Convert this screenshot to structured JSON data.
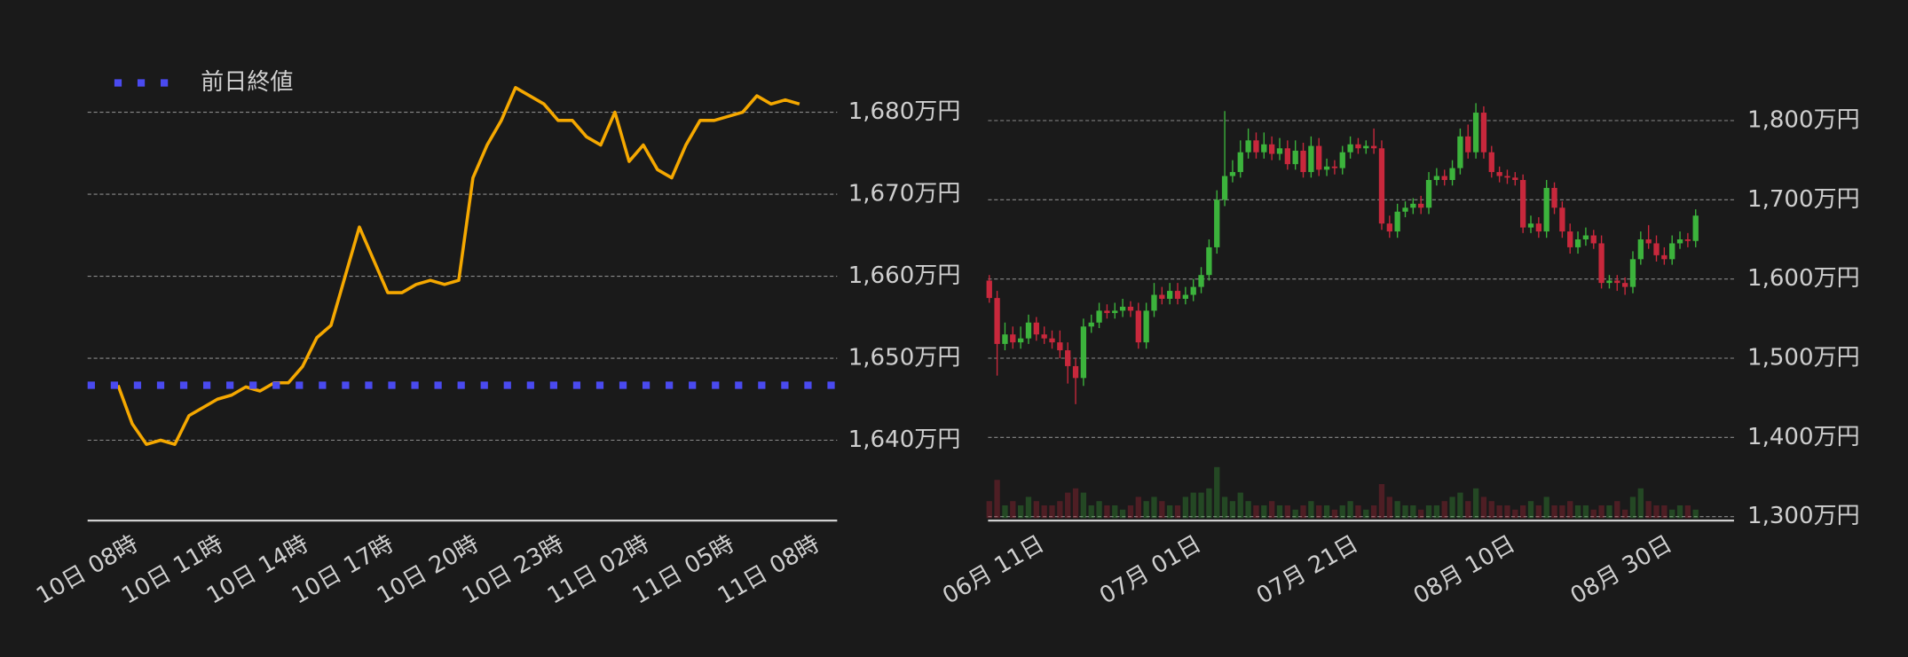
{
  "chart_data": [
    {
      "type": "line",
      "x": [
        "10日 08時",
        null,
        null,
        null,
        null,
        null,
        "10日 11時",
        null,
        null,
        null,
        null,
        null,
        "10日 14時",
        null,
        null,
        null,
        null,
        null,
        "10日 17時",
        null,
        null,
        null,
        null,
        null,
        "10日 20時",
        null,
        null,
        null,
        null,
        null,
        "10日 23時",
        null,
        null,
        null,
        null,
        null,
        "11日 02時",
        null,
        null,
        null,
        null,
        null,
        "11日 05時",
        null,
        null,
        null,
        null,
        null,
        "11日 08時"
      ],
      "series": [
        {
          "color": "#f5a800",
          "values": [
            1646.7,
            1642,
            1639.5,
            1640,
            1639.5,
            1643,
            1644,
            1645,
            1645.5,
            1646.5,
            1646,
            1647,
            1647,
            1649,
            1652.5,
            1654,
            1660,
            1666,
            1662,
            1658,
            1658,
            1659,
            1659.5,
            1659,
            1659.5,
            1672,
            1676,
            1679,
            1683,
            1682,
            1681,
            1679,
            1679,
            1677,
            1676,
            1680,
            1674,
            1676,
            1673,
            1672,
            1676,
            1679,
            1679,
            1679.5,
            1680,
            1682,
            1681,
            1681.5,
            1681
          ]
        }
      ],
      "reference_line": {
        "name": "前日終値",
        "value": 1646.7,
        "color": "#4a4af0"
      },
      "legend": "top-left",
      "ylim": [
        1630.2,
        1685.5
      ],
      "yticks": [
        {
          "value": 1640,
          "label": "1,640万円"
        },
        {
          "value": 1650,
          "label": "1,650万円"
        },
        {
          "value": 1660,
          "label": "1,660万円"
        },
        {
          "value": 1670,
          "label": "1,670万円"
        },
        {
          "value": 1680,
          "label": "1,680万円"
        }
      ],
      "grid": true
    },
    {
      "type": "candlestick",
      "x": [
        null,
        null,
        null,
        null,
        null,
        null,
        "06月 11日",
        null,
        null,
        null,
        null,
        null,
        null,
        null,
        null,
        null,
        null,
        null,
        null,
        null,
        null,
        null,
        null,
        null,
        null,
        null,
        "07月 01日",
        null,
        null,
        null,
        null,
        null,
        null,
        null,
        null,
        null,
        null,
        null,
        null,
        null,
        null,
        null,
        null,
        null,
        null,
        null,
        "07月 21日",
        null,
        null,
        null,
        null,
        null,
        null,
        null,
        null,
        null,
        null,
        null,
        null,
        null,
        null,
        null,
        null,
        null,
        null,
        null,
        "08月 10日",
        null,
        null,
        null,
        null,
        null,
        null,
        null,
        null,
        null,
        null,
        null,
        null,
        null,
        null,
        null,
        null,
        null,
        null,
        null,
        "08月 30日",
        null,
        null,
        null,
        null
      ],
      "open": [
        1598,
        1576,
        1518,
        1530,
        1520,
        1525,
        1545,
        1530,
        1525,
        1520,
        1510,
        1490,
        1475,
        1540,
        1545,
        1560,
        1557,
        1560,
        1565,
        1560,
        1520,
        1560,
        1580,
        1575,
        1585,
        1575,
        1580,
        1590,
        1605,
        1640,
        1700,
        1730,
        1735,
        1760,
        1775,
        1760,
        1770,
        1758,
        1765,
        1745,
        1762,
        1735,
        1768,
        1738,
        1742,
        1740,
        1760,
        1770,
        1765,
        1768,
        1765,
        1670,
        1660,
        1685,
        1690,
        1695,
        1690,
        1725,
        1730,
        1725,
        1740,
        1780,
        1760,
        1810,
        1760,
        1735,
        1730,
        1728,
        1725,
        1665,
        1670,
        1660,
        1715,
        1690,
        1660,
        1640,
        1650,
        1655,
        1645,
        1595,
        1598,
        1595,
        1590,
        1625,
        1650,
        1645,
        1630,
        1625,
        1645,
        1650,
        1648
      ],
      "high": [
        1605,
        1585,
        1545,
        1540,
        1540,
        1555,
        1552,
        1540,
        1535,
        1535,
        1520,
        1500,
        1550,
        1555,
        1570,
        1568,
        1570,
        1575,
        1572,
        1570,
        1570,
        1595,
        1590,
        1595,
        1595,
        1590,
        1600,
        1615,
        1650,
        1712,
        1812,
        1750,
        1775,
        1790,
        1785,
        1785,
        1780,
        1778,
        1775,
        1775,
        1772,
        1780,
        1778,
        1752,
        1750,
        1768,
        1780,
        1778,
        1775,
        1790,
        1775,
        1680,
        1695,
        1698,
        1702,
        1705,
        1735,
        1740,
        1738,
        1750,
        1790,
        1795,
        1822,
        1818,
        1768,
        1742,
        1738,
        1735,
        1732,
        1680,
        1678,
        1725,
        1722,
        1698,
        1670,
        1660,
        1665,
        1662,
        1655,
        1605,
        1605,
        1602,
        1635,
        1660,
        1668,
        1655,
        1640,
        1655,
        1660,
        1658,
        1688
      ],
      "low": [
        1570,
        1478,
        1510,
        1512,
        1512,
        1518,
        1522,
        1518,
        1512,
        1500,
        1468,
        1442,
        1465,
        1532,
        1538,
        1550,
        1550,
        1552,
        1552,
        1512,
        1512,
        1552,
        1568,
        1568,
        1568,
        1568,
        1572,
        1582,
        1598,
        1632,
        1692,
        1722,
        1728,
        1752,
        1752,
        1752,
        1750,
        1750,
        1738,
        1738,
        1728,
        1728,
        1730,
        1730,
        1732,
        1732,
        1752,
        1758,
        1758,
        1758,
        1662,
        1652,
        1652,
        1678,
        1682,
        1682,
        1682,
        1718,
        1718,
        1718,
        1732,
        1752,
        1752,
        1752,
        1728,
        1722,
        1720,
        1718,
        1658,
        1658,
        1652,
        1652,
        1682,
        1652,
        1632,
        1632,
        1642,
        1638,
        1588,
        1588,
        1585,
        1580,
        1582,
        1618,
        1638,
        1622,
        1618,
        1618,
        1638,
        1640,
        1640
      ],
      "close": [
        1576,
        1518,
        1530,
        1520,
        1525,
        1545,
        1530,
        1525,
        1520,
        1510,
        1490,
        1475,
        1540,
        1545,
        1560,
        1557,
        1560,
        1565,
        1560,
        1520,
        1560,
        1580,
        1575,
        1585,
        1575,
        1580,
        1590,
        1605,
        1640,
        1700,
        1730,
        1735,
        1760,
        1775,
        1760,
        1770,
        1758,
        1765,
        1745,
        1762,
        1735,
        1768,
        1738,
        1742,
        1740,
        1760,
        1770,
        1765,
        1768,
        1765,
        1670,
        1660,
        1685,
        1690,
        1695,
        1690,
        1725,
        1730,
        1725,
        1740,
        1780,
        1760,
        1810,
        1760,
        1735,
        1730,
        1728,
        1725,
        1665,
        1670,
        1660,
        1715,
        1690,
        1660,
        1640,
        1650,
        1655,
        1645,
        1595,
        1598,
        1595,
        1590,
        1625,
        1650,
        1645,
        1630,
        1625,
        1645,
        1650,
        1648,
        1680
      ],
      "volume": [
        4,
        9,
        3,
        4,
        3,
        5,
        4,
        3,
        3,
        4,
        6,
        7,
        6,
        3,
        4,
        3,
        3,
        2,
        3,
        5,
        4,
        5,
        4,
        3,
        3,
        5,
        6,
        6,
        7,
        12,
        5,
        4,
        6,
        4,
        3,
        3,
        4,
        3,
        3,
        2,
        3,
        4,
        3,
        3,
        2,
        3,
        4,
        3,
        2,
        3,
        8,
        5,
        4,
        3,
        3,
        2,
        3,
        3,
        4,
        5,
        6,
        4,
        7,
        5,
        4,
        3,
        3,
        2,
        3,
        4,
        3,
        5,
        3,
        3,
        4,
        3,
        3,
        2,
        3,
        3,
        4,
        2,
        5,
        7,
        4,
        3,
        3,
        2,
        3,
        3,
        2
      ],
      "up_color": "#3cb33c",
      "down_color": "#c8283c",
      "ylim": [
        1295,
        1815
      ],
      "yticks": [
        {
          "value": 1300,
          "label": "1,300万円"
        },
        {
          "value": 1400,
          "label": "1,400万円"
        },
        {
          "value": 1500,
          "label": "1,500万円"
        },
        {
          "value": 1600,
          "label": "1,600万円"
        },
        {
          "value": 1700,
          "label": "1,700万円"
        },
        {
          "value": 1800,
          "label": "1,800万円"
        }
      ],
      "grid": true
    }
  ]
}
